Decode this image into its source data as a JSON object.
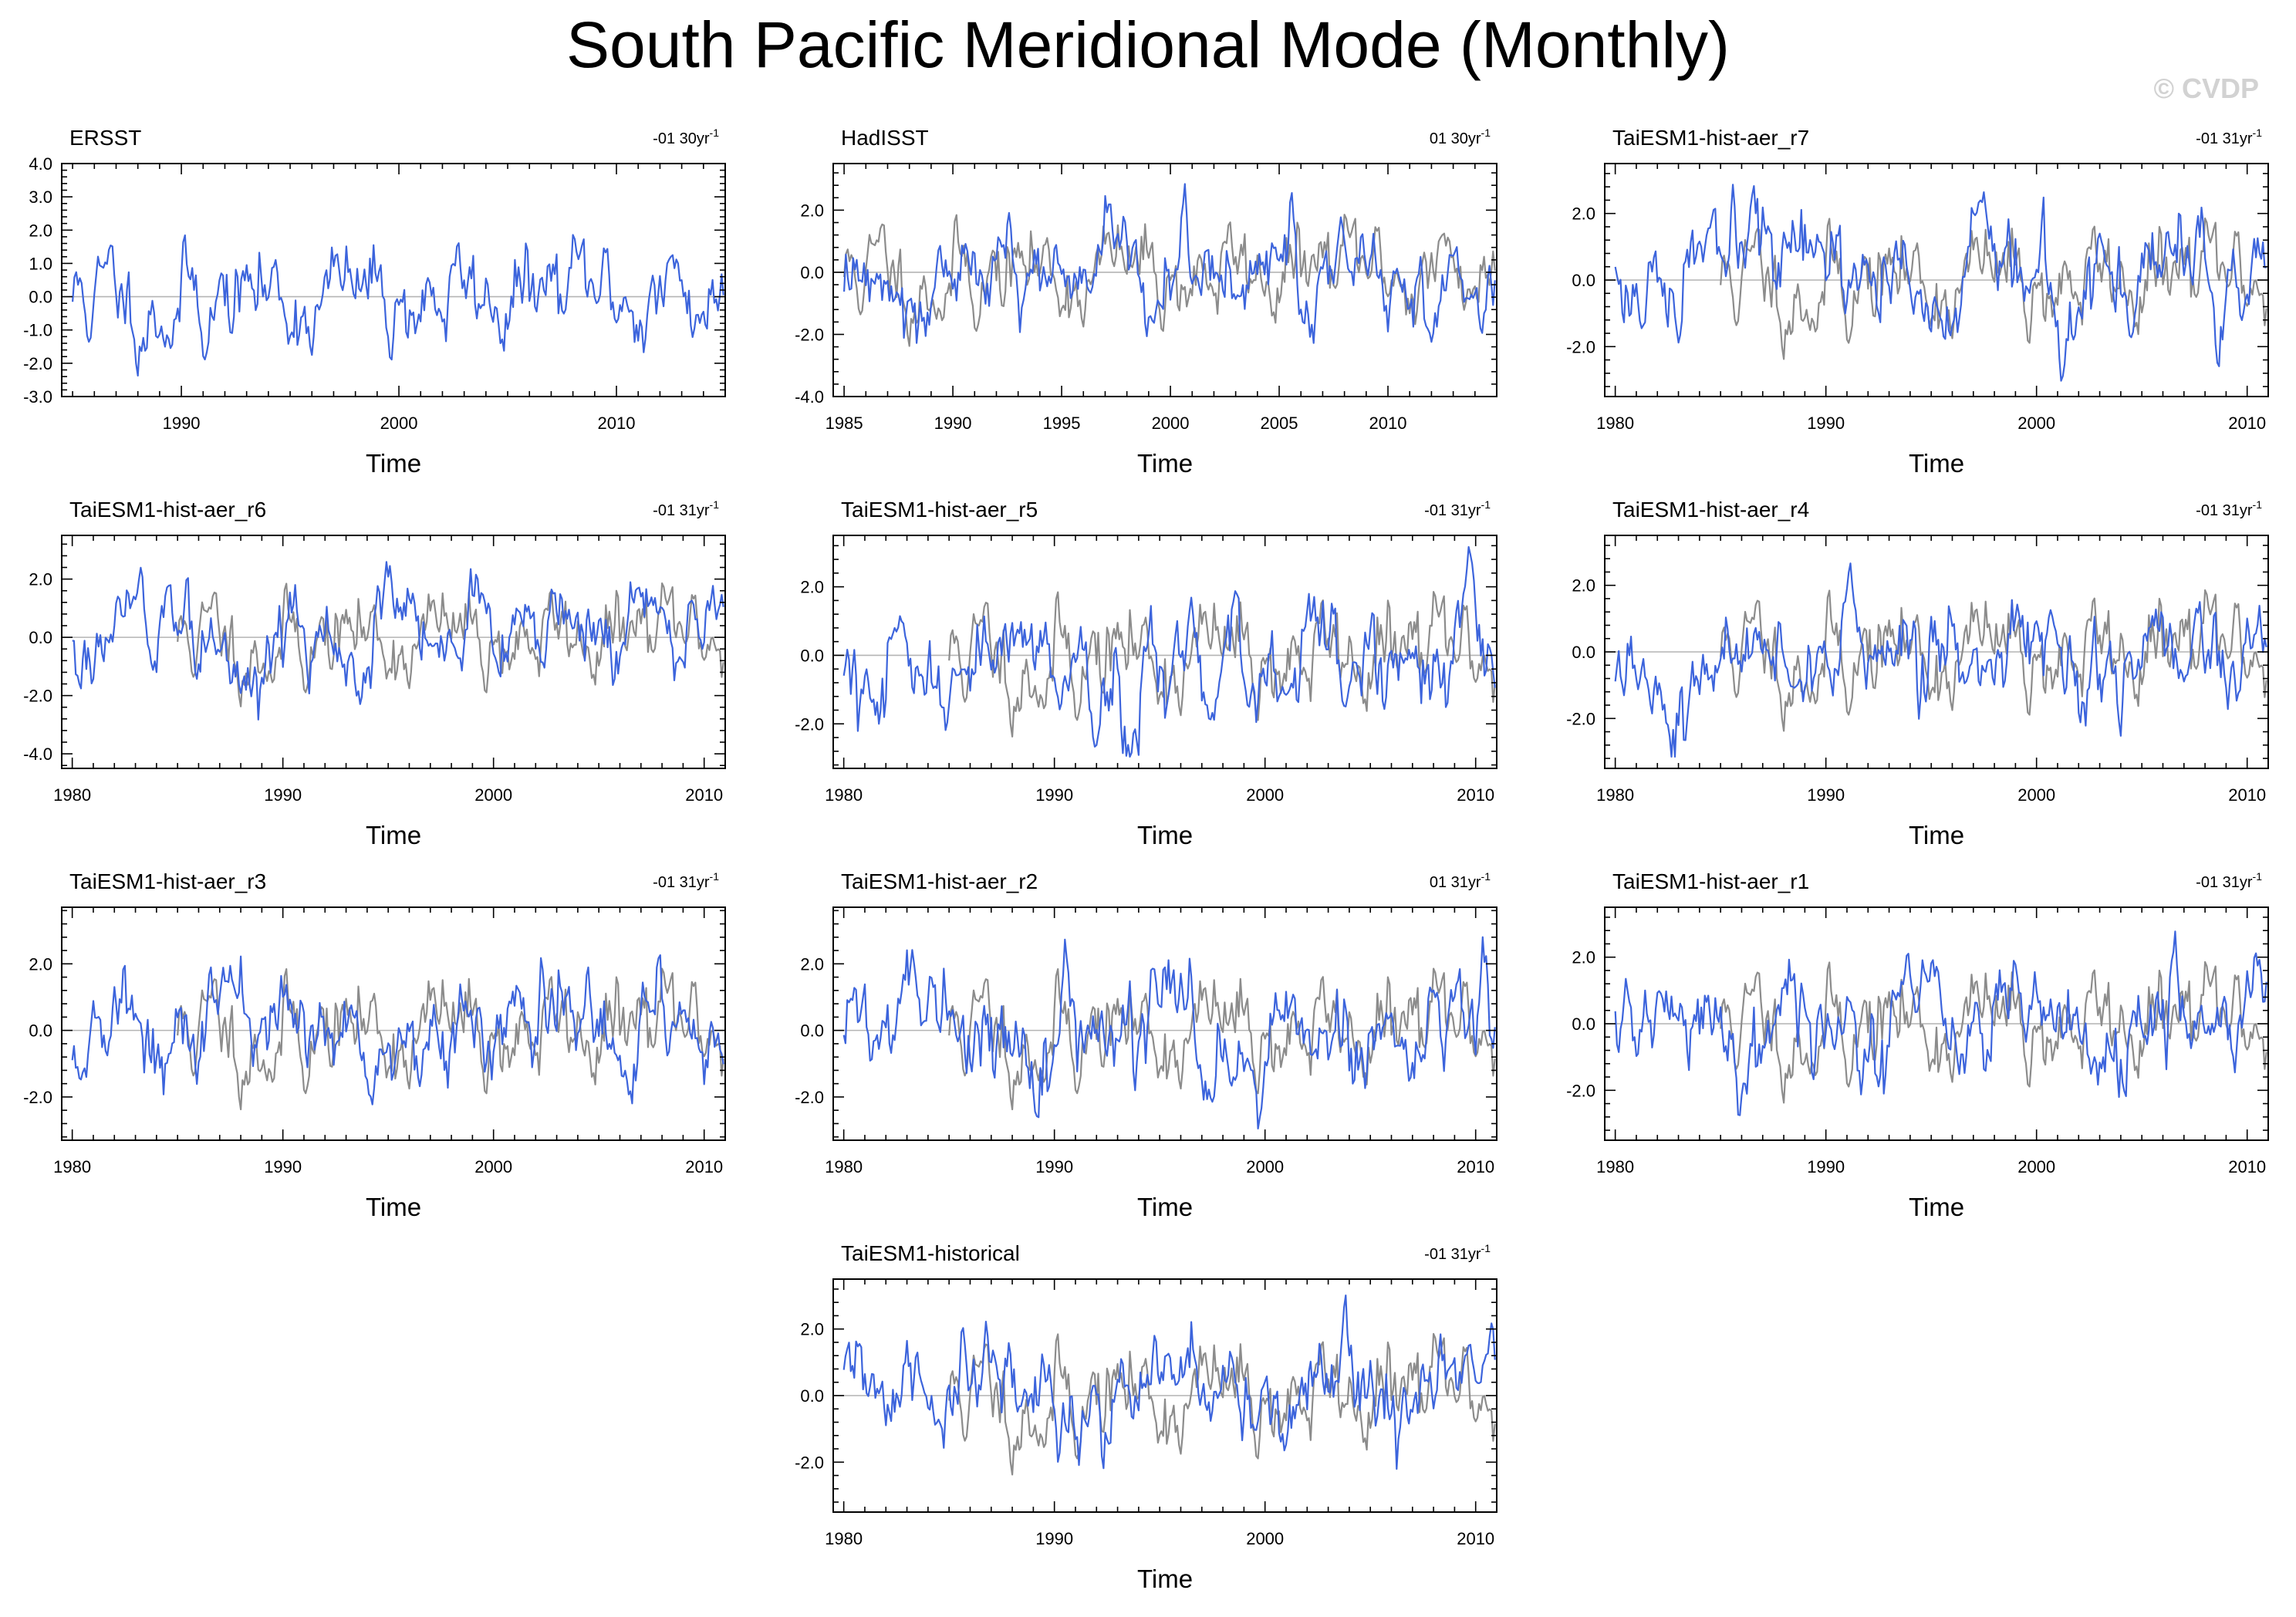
{
  "figure": {
    "title": "South Pacific Meridional Mode (Monthly)",
    "watermark": "© CVDP"
  },
  "colors": {
    "model_line": "#3c64dc",
    "obs_line": "#8c8c8c",
    "zero_line": "#b4b4b4",
    "axes": "#000000"
  },
  "chart_data": [
    {
      "type": "line",
      "title": "ERSST",
      "trend_label": "-01 30yr",
      "trend_exponent": "-1",
      "xlabel": "Time",
      "ylabel": "",
      "xlim": [
        1984.5,
        2015
      ],
      "ylim": [
        -3,
        4
      ],
      "xticks": [
        1990,
        2000,
        2010
      ],
      "yticks": [
        -3,
        -2,
        -1,
        0,
        1,
        2,
        3,
        4
      ],
      "ytick_labels": [
        "-3.0",
        "-2.0",
        "-1.0",
        "0.0",
        "1.0",
        "2.0",
        "3.0",
        "4.0"
      ],
      "series": [
        {
          "name": "ERSST",
          "color": "blue",
          "x_start": 1985,
          "x_end": 2014.9,
          "seed": 11
        }
      ]
    },
    {
      "type": "line",
      "title": "HadISST",
      "trend_label": "01 30yr",
      "trend_exponent": "-1",
      "xlabel": "Time",
      "ylabel": "",
      "xlim": [
        1984.5,
        2015
      ],
      "ylim": [
        -4,
        3.5
      ],
      "xticks": [
        1985,
        1990,
        1995,
        2000,
        2005,
        2010
      ],
      "yticks": [
        -4,
        -2,
        0,
        2
      ],
      "ytick_labels": [
        "-4.0",
        "-2.0",
        "0.0",
        "2.0"
      ],
      "series": [
        {
          "name": "ERSST",
          "color": "gray",
          "x_start": 1985,
          "x_end": 2014.9,
          "seed": 11
        },
        {
          "name": "HadISST",
          "color": "blue",
          "x_start": 1985,
          "x_end": 2014.9,
          "seed": 12
        }
      ]
    },
    {
      "type": "line",
      "title": "TaiESM1-hist-aer_r7",
      "trend_label": "-01 31yr",
      "trend_exponent": "-1",
      "xlabel": "Time",
      "ylabel": "",
      "xlim": [
        1979.5,
        2011
      ],
      "ylim": [
        -3.5,
        3.5
      ],
      "xticks": [
        1980,
        1990,
        2000,
        2010
      ],
      "yticks": [
        -2,
        0,
        2
      ],
      "ytick_labels": [
        "-2.0",
        "0.0",
        "2.0"
      ],
      "series": [
        {
          "name": "ERSST",
          "color": "gray",
          "x_start": 1985,
          "x_end": 2010.9,
          "seed": 11
        },
        {
          "name": "TaiESM1-hist-aer_r7",
          "color": "blue",
          "x_start": 1980,
          "x_end": 2010.9,
          "seed": 17
        }
      ]
    },
    {
      "type": "line",
      "title": "TaiESM1-hist-aer_r6",
      "trend_label": "-01 31yr",
      "trend_exponent": "-1",
      "xlabel": "Time",
      "ylabel": "",
      "xlim": [
        1979.5,
        2011
      ],
      "ylim": [
        -4.5,
        3.5
      ],
      "xticks": [
        1980,
        1990,
        2000,
        2010
      ],
      "yticks": [
        -4,
        -2,
        0,
        2
      ],
      "ytick_labels": [
        "-4.0",
        "-2.0",
        "0.0",
        "2.0"
      ],
      "series": [
        {
          "name": "ERSST",
          "color": "gray",
          "x_start": 1985,
          "x_end": 2010.9,
          "seed": 11
        },
        {
          "name": "TaiESM1-hist-aer_r6",
          "color": "blue",
          "x_start": 1980,
          "x_end": 2010.9,
          "seed": 16
        }
      ]
    },
    {
      "type": "line",
      "title": "TaiESM1-hist-aer_r5",
      "trend_label": "-01 31yr",
      "trend_exponent": "-1",
      "xlabel": "Time",
      "ylabel": "",
      "xlim": [
        1979.5,
        2011
      ],
      "ylim": [
        -3.3,
        3.5
      ],
      "xticks": [
        1980,
        1990,
        2000,
        2010
      ],
      "yticks": [
        -2,
        0,
        2
      ],
      "ytick_labels": [
        "-2.0",
        "0.0",
        "2.0"
      ],
      "series": [
        {
          "name": "ERSST",
          "color": "gray",
          "x_start": 1985,
          "x_end": 2010.9,
          "seed": 11
        },
        {
          "name": "TaiESM1-hist-aer_r5",
          "color": "blue",
          "x_start": 1980,
          "x_end": 2010.9,
          "seed": 15
        }
      ]
    },
    {
      "type": "line",
      "title": "TaiESM1-hist-aer_r4",
      "trend_label": "-01 31yr",
      "trend_exponent": "-1",
      "xlabel": "Time",
      "ylabel": "",
      "xlim": [
        1979.5,
        2011
      ],
      "ylim": [
        -3.5,
        3.5
      ],
      "xticks": [
        1980,
        1990,
        2000,
        2010
      ],
      "yticks": [
        -2,
        0,
        2
      ],
      "ytick_labels": [
        "-2.0",
        "0.0",
        "2.0"
      ],
      "series": [
        {
          "name": "ERSST",
          "color": "gray",
          "x_start": 1985,
          "x_end": 2010.9,
          "seed": 11
        },
        {
          "name": "TaiESM1-hist-aer_r4",
          "color": "blue",
          "x_start": 1980,
          "x_end": 2010.9,
          "seed": 14
        }
      ]
    },
    {
      "type": "line",
      "title": "TaiESM1-hist-aer_r3",
      "trend_label": "-01 31yr",
      "trend_exponent": "-1",
      "xlabel": "Time",
      "ylabel": "",
      "xlim": [
        1979.5,
        2011
      ],
      "ylim": [
        -3.3,
        3.7
      ],
      "xticks": [
        1980,
        1990,
        2000,
        2010
      ],
      "yticks": [
        -2,
        0,
        2
      ],
      "ytick_labels": [
        "-2.0",
        "0.0",
        "2.0"
      ],
      "series": [
        {
          "name": "ERSST",
          "color": "gray",
          "x_start": 1985,
          "x_end": 2010.9,
          "seed": 11
        },
        {
          "name": "TaiESM1-hist-aer_r3",
          "color": "blue",
          "x_start": 1980,
          "x_end": 2010.9,
          "seed": 13
        }
      ]
    },
    {
      "type": "line",
      "title": "TaiESM1-hist-aer_r2",
      "trend_label": "01 31yr",
      "trend_exponent": "-1",
      "xlabel": "Time",
      "ylabel": "",
      "xlim": [
        1979.5,
        2011
      ],
      "ylim": [
        -3.3,
        3.7
      ],
      "xticks": [
        1980,
        1990,
        2000,
        2010
      ],
      "yticks": [
        -2,
        0,
        2
      ],
      "ytick_labels": [
        "-2.0",
        "0.0",
        "2.0"
      ],
      "series": [
        {
          "name": "ERSST",
          "color": "gray",
          "x_start": 1985,
          "x_end": 2010.9,
          "seed": 11
        },
        {
          "name": "TaiESM1-hist-aer_r2",
          "color": "blue",
          "x_start": 1980,
          "x_end": 2010.9,
          "seed": 22
        }
      ]
    },
    {
      "type": "line",
      "title": "TaiESM1-hist-aer_r1",
      "trend_label": "-01 31yr",
      "trend_exponent": "-1",
      "xlabel": "Time",
      "ylabel": "",
      "xlim": [
        1979.5,
        2011
      ],
      "ylim": [
        -3.5,
        3.5
      ],
      "xticks": [
        1980,
        1990,
        2000,
        2010
      ],
      "yticks": [
        -2,
        0,
        2
      ],
      "ytick_labels": [
        "-2.0",
        "0.0",
        "2.0"
      ],
      "series": [
        {
          "name": "ERSST",
          "color": "gray",
          "x_start": 1985,
          "x_end": 2010.9,
          "seed": 11
        },
        {
          "name": "TaiESM1-hist-aer_r1",
          "color": "blue",
          "x_start": 1980,
          "x_end": 2010.9,
          "seed": 21
        }
      ]
    },
    {
      "type": "line",
      "title": "TaiESM1-historical",
      "trend_label": "-01 31yr",
      "trend_exponent": "-1",
      "xlabel": "Time",
      "ylabel": "",
      "xlim": [
        1979.5,
        2011
      ],
      "ylim": [
        -3.5,
        3.5
      ],
      "xticks": [
        1980,
        1990,
        2000,
        2010
      ],
      "yticks": [
        -2,
        0,
        2
      ],
      "ytick_labels": [
        "-2.0",
        "0.0",
        "2.0"
      ],
      "series": [
        {
          "name": "ERSST",
          "color": "gray",
          "x_start": 1985,
          "x_end": 2010.9,
          "seed": 11
        },
        {
          "name": "TaiESM1-historical",
          "color": "blue",
          "x_start": 1980,
          "x_end": 2010.9,
          "seed": 31
        }
      ]
    }
  ]
}
